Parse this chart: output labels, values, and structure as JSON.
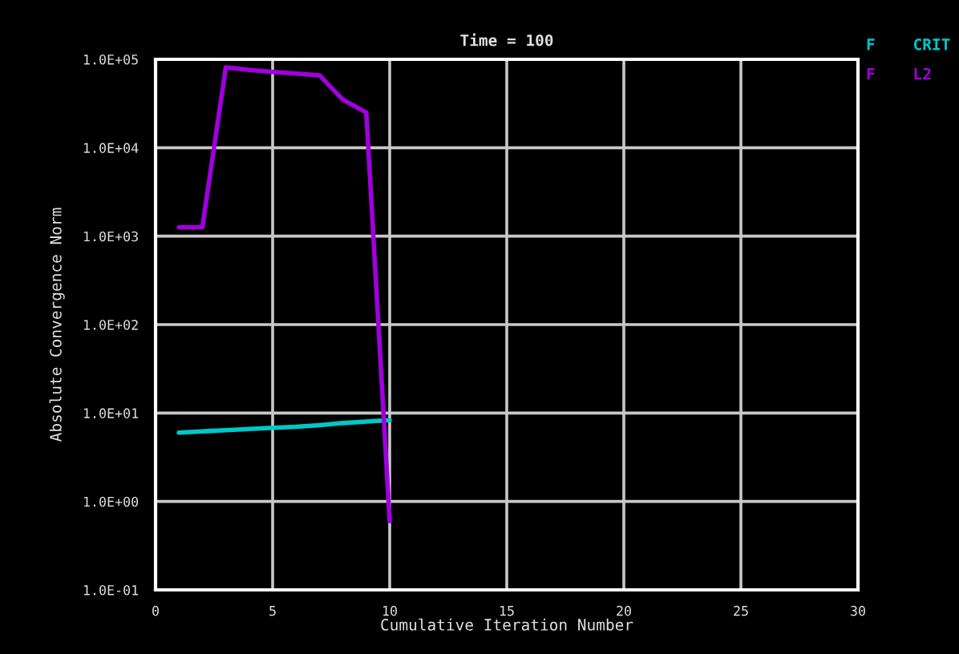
{
  "chart_data": {
    "type": "line",
    "title": "Time = 100",
    "xlabel": "Cumulative Iteration Number",
    "ylabel": "Absolute Convergence Norm",
    "x": [
      1,
      2,
      3,
      4,
      5,
      6,
      7,
      8,
      9,
      10
    ],
    "series": [
      {
        "name": "F    CRIT",
        "color": "#00c8c8",
        "values": [
          6.0,
          6.2,
          6.4,
          6.6,
          6.8,
          7.0,
          7.3,
          7.7,
          8.0,
          8.3
        ]
      },
      {
        "name": "F    L2",
        "color": "#a000e0",
        "values": [
          1260,
          1260,
          81000,
          76000,
          72000,
          69000,
          66000,
          35000,
          25000,
          0.6
        ]
      }
    ],
    "log": "y",
    "xlim": [
      0,
      30
    ],
    "xticks": [
      0,
      5,
      10,
      15,
      20,
      25,
      30
    ],
    "ylim": [
      0.1,
      100000
    ],
    "yticks": [
      {
        "value": 0.1,
        "label": "1.0E-01"
      },
      {
        "value": 1,
        "label": "1.0E+00"
      },
      {
        "value": 10,
        "label": "1.0E+01"
      },
      {
        "value": 100,
        "label": "1.0E+02"
      },
      {
        "value": 1000,
        "label": "1.0E+03"
      },
      {
        "value": 10000,
        "label": "1.0E+04"
      },
      {
        "value": 100000,
        "label": "1.0E+05"
      }
    ],
    "grid": true,
    "legend": "top right",
    "marker": "none",
    "line_style": "solid"
  }
}
